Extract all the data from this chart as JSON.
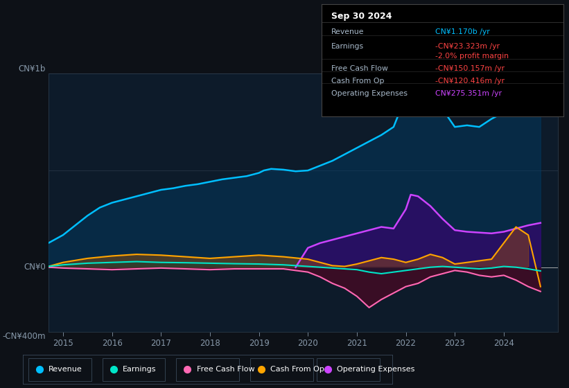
{
  "bg_color": "#0d1117",
  "plot_bg_color": "#0d1b2a",
  "y_label_top": "CN¥1b",
  "y_label_bottom": "-CN¥400m",
  "y_label_zero": "CN¥0",
  "x_ticks": [
    2015,
    2016,
    2017,
    2018,
    2019,
    2020,
    2021,
    2022,
    2023,
    2024
  ],
  "ylim": [
    -400,
    1200
  ],
  "xlim": [
    2014.7,
    2025.1
  ],
  "legend_items": [
    {
      "label": "Revenue",
      "color": "#00bfff"
    },
    {
      "label": "Earnings",
      "color": "#00e5c8"
    },
    {
      "label": "Free Cash Flow",
      "color": "#ff69b4"
    },
    {
      "label": "Cash From Op",
      "color": "#ffa500"
    },
    {
      "label": "Operating Expenses",
      "color": "#cc44ff"
    }
  ],
  "info_box": {
    "title": "Sep 30 2024",
    "rows": [
      {
        "label": "Revenue",
        "value": "CN¥1.170b /yr",
        "value_color": "#00bfff"
      },
      {
        "label": "Earnings",
        "value": "-CN¥23.323m /yr",
        "value_color": "#ff4444"
      },
      {
        "label": "",
        "value": "-2.0% profit margin",
        "value_color": "#ff4444"
      },
      {
        "label": "Free Cash Flow",
        "value": "-CN¥150.157m /yr",
        "value_color": "#ff4444"
      },
      {
        "label": "Cash From Op",
        "value": "-CN¥120.416m /yr",
        "value_color": "#ff4444"
      },
      {
        "label": "Operating Expenses",
        "value": "CN¥275.351m /yr",
        "value_color": "#cc44ff"
      }
    ]
  },
  "revenue": {
    "x": [
      2014.7,
      2015.0,
      2015.25,
      2015.5,
      2015.75,
      2016.0,
      2016.25,
      2016.5,
      2016.75,
      2017.0,
      2017.25,
      2017.5,
      2017.75,
      2018.0,
      2018.25,
      2018.5,
      2018.75,
      2019.0,
      2019.1,
      2019.25,
      2019.5,
      2019.75,
      2020.0,
      2020.25,
      2020.5,
      2020.75,
      2021.0,
      2021.25,
      2021.5,
      2021.75,
      2022.0,
      2022.1,
      2022.25,
      2022.5,
      2022.75,
      2023.0,
      2023.25,
      2023.5,
      2023.75,
      2024.0,
      2024.25,
      2024.5,
      2024.75
    ],
    "y": [
      150,
      200,
      260,
      320,
      370,
      400,
      420,
      440,
      460,
      480,
      490,
      505,
      515,
      530,
      545,
      555,
      565,
      585,
      600,
      610,
      605,
      595,
      600,
      630,
      660,
      700,
      740,
      780,
      820,
      870,
      1060,
      1100,
      1090,
      1050,
      980,
      870,
      880,
      870,
      920,
      960,
      1020,
      1100,
      1170
    ]
  },
  "earnings": {
    "x": [
      2014.7,
      2015.0,
      2015.5,
      2016.0,
      2016.5,
      2017.0,
      2017.5,
      2018.0,
      2018.5,
      2019.0,
      2019.5,
      2020.0,
      2020.25,
      2020.5,
      2020.75,
      2021.0,
      2021.25,
      2021.5,
      2021.75,
      2022.0,
      2022.25,
      2022.5,
      2022.75,
      2023.0,
      2023.25,
      2023.5,
      2023.75,
      2024.0,
      2024.25,
      2024.5,
      2024.75
    ],
    "y": [
      5,
      15,
      25,
      30,
      35,
      30,
      28,
      25,
      22,
      20,
      15,
      5,
      0,
      -5,
      -10,
      -15,
      -30,
      -40,
      -30,
      -20,
      -10,
      0,
      5,
      0,
      -5,
      -10,
      -5,
      5,
      0,
      -10,
      -23
    ]
  },
  "free_cash_flow": {
    "x": [
      2014.7,
      2015.0,
      2015.5,
      2016.0,
      2016.5,
      2017.0,
      2017.5,
      2018.0,
      2018.5,
      2019.0,
      2019.5,
      2020.0,
      2020.25,
      2020.5,
      2020.75,
      2021.0,
      2021.25,
      2021.5,
      2021.75,
      2022.0,
      2022.25,
      2022.5,
      2022.75,
      2023.0,
      2023.25,
      2023.5,
      2023.75,
      2024.0,
      2024.25,
      2024.5,
      2024.75
    ],
    "y": [
      0,
      -5,
      -10,
      -15,
      -10,
      -5,
      -10,
      -15,
      -10,
      -10,
      -10,
      -30,
      -60,
      -100,
      -130,
      -180,
      -250,
      -200,
      -160,
      -120,
      -100,
      -60,
      -40,
      -20,
      -30,
      -50,
      -60,
      -50,
      -80,
      -120,
      -150
    ]
  },
  "cash_from_op": {
    "x": [
      2014.7,
      2015.0,
      2015.5,
      2016.0,
      2016.5,
      2017.0,
      2017.5,
      2018.0,
      2018.5,
      2019.0,
      2019.5,
      2020.0,
      2020.25,
      2020.5,
      2020.75,
      2021.0,
      2021.25,
      2021.5,
      2021.75,
      2022.0,
      2022.25,
      2022.5,
      2022.75,
      2023.0,
      2023.25,
      2023.5,
      2023.75,
      2024.0,
      2024.25,
      2024.5,
      2024.75
    ],
    "y": [
      5,
      30,
      55,
      70,
      80,
      75,
      65,
      55,
      65,
      75,
      65,
      50,
      30,
      10,
      5,
      20,
      40,
      60,
      50,
      30,
      50,
      80,
      60,
      20,
      30,
      40,
      50,
      150,
      250,
      200,
      -120
    ]
  },
  "operating_expenses": {
    "x": [
      2019.75,
      2020.0,
      2020.25,
      2020.5,
      2020.75,
      2021.0,
      2021.25,
      2021.5,
      2021.75,
      2022.0,
      2022.1,
      2022.25,
      2022.5,
      2022.75,
      2023.0,
      2023.25,
      2023.5,
      2023.75,
      2024.0,
      2024.25,
      2024.5,
      2024.75
    ],
    "y": [
      0,
      120,
      150,
      170,
      190,
      210,
      230,
      250,
      240,
      360,
      450,
      440,
      380,
      300,
      230,
      220,
      215,
      210,
      220,
      240,
      260,
      275
    ]
  }
}
